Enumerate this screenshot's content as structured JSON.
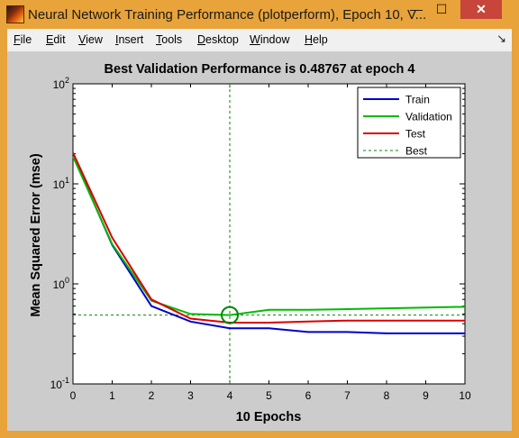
{
  "window": {
    "title": "Neural Network Training Performance (plotperform), Epoch 10, V...",
    "minimize_glyph": "—",
    "maximize_glyph": "☐",
    "close_glyph": "✕"
  },
  "menu": {
    "items": [
      "File",
      "Edit",
      "View",
      "Insert",
      "Tools",
      "Desktop",
      "Window",
      "Help"
    ],
    "dock_glyph": "↘"
  },
  "chart_data": {
    "type": "line",
    "title": "Best Validation Performance is 0.48767 at epoch 4",
    "xlabel": "10 Epochs",
    "ylabel": "Mean Squared Error  (mse)",
    "xlim": [
      0,
      10
    ],
    "ylim": [
      0.1,
      100
    ],
    "yscale": "log",
    "xticks": [
      0,
      1,
      2,
      3,
      4,
      5,
      6,
      7,
      8,
      9,
      10
    ],
    "ytick_labels": [
      {
        "base": "10",
        "exp": "-1",
        "value": 0.1
      },
      {
        "base": "10",
        "exp": "0",
        "value": 1
      },
      {
        "base": "10",
        "exp": "1",
        "value": 10
      },
      {
        "base": "10",
        "exp": "2",
        "value": 100
      }
    ],
    "x": [
      0,
      1,
      2,
      3,
      4,
      5,
      6,
      7,
      8,
      9,
      10
    ],
    "series": [
      {
        "name": "Train",
        "color": "#0000cc",
        "style": "solid",
        "values": [
          19.5,
          2.45,
          0.6,
          0.42,
          0.36,
          0.36,
          0.33,
          0.33,
          0.32,
          0.32,
          0.32
        ]
      },
      {
        "name": "Validation",
        "color": "#00bb00",
        "style": "solid",
        "values": [
          18.8,
          2.5,
          0.68,
          0.5,
          0.48767,
          0.55,
          0.55,
          0.56,
          0.57,
          0.58,
          0.59
        ]
      },
      {
        "name": "Test",
        "color": "#dd0000",
        "style": "solid",
        "values": [
          20.5,
          2.9,
          0.7,
          0.45,
          0.41,
          0.41,
          0.42,
          0.43,
          0.43,
          0.43,
          0.43
        ]
      }
    ],
    "best": {
      "name": "Best",
      "epoch": 4,
      "value": 0.48767,
      "color": "#008800",
      "style": "dashed"
    },
    "legend_placement": "top-right",
    "grid": false
  }
}
